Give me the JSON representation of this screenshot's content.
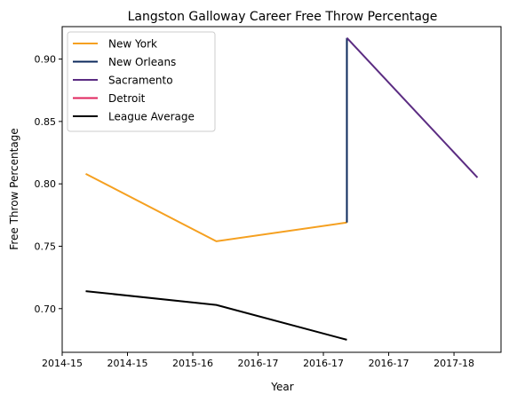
{
  "chart_data": {
    "type": "line",
    "title": "Langston Galloway Career Free Throw Percentage",
    "xlabel": "Year",
    "ylabel": "Free Throw Percentage",
    "x_ticks": [
      "2014-15",
      "2014-15",
      "2015-16",
      "2016-17",
      "2016-17",
      "2016-17",
      "2017-18"
    ],
    "x_range": [
      -0.18,
      3.18
    ],
    "y_ticks": [
      0.7,
      0.75,
      0.8,
      0.85,
      0.9
    ],
    "ylim": [
      0.665,
      0.926
    ],
    "grid": false,
    "legend_position": "top-left",
    "series": [
      {
        "name": "New York",
        "color": "#f5a020",
        "x": [
          0,
          1,
          2
        ],
        "x_labels": [
          "2014-15",
          "2015-16",
          "2016-17"
        ],
        "values": [
          0.808,
          0.754,
          0.769
        ]
      },
      {
        "name": "New Orleans",
        "color": "#0c2a5c",
        "x": [
          2,
          2
        ],
        "x_labels": [
          "2016-17",
          "2016-17"
        ],
        "values": [
          0.769,
          0.917
        ]
      },
      {
        "name": "Sacramento",
        "color": "#5b2c82",
        "x": [
          2,
          3
        ],
        "x_labels": [
          "2016-17",
          "2017-18"
        ],
        "values": [
          0.917,
          0.805
        ]
      },
      {
        "name": "Detroit",
        "color": "#e0245e",
        "x": [],
        "x_labels": [],
        "values": []
      },
      {
        "name": "League Average",
        "color": "#000000",
        "x": [
          0,
          1,
          2
        ],
        "x_labels": [
          "2014-15",
          "2015-16",
          "2016-17"
        ],
        "values": [
          0.714,
          0.703,
          0.675
        ]
      }
    ]
  }
}
